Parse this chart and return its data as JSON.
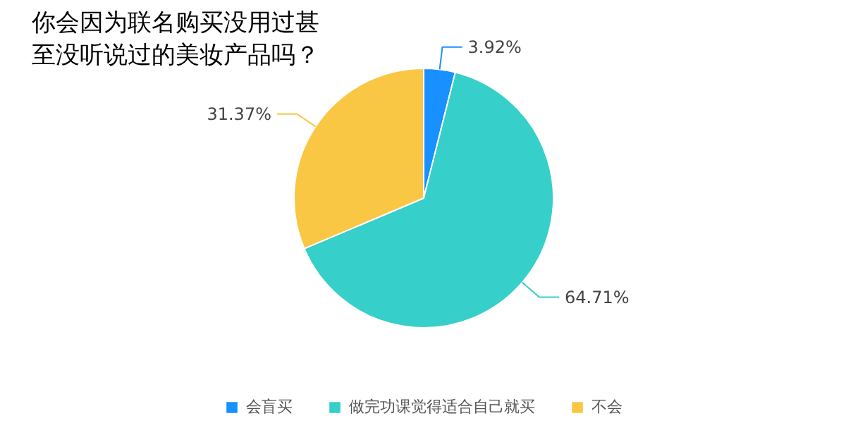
{
  "chart_data": {
    "type": "pie",
    "title": "你会因为联名购买没用过甚至没听说过的美妆产品吗？",
    "categories": [
      "会盲买",
      "做完功课觉得适合自己就买",
      "不会"
    ],
    "values": [
      3.92,
      64.71,
      31.37
    ],
    "colors": [
      "#1890ff",
      "#36cfc9",
      "#fac745"
    ],
    "value_labels": [
      "3.92%",
      "64.71%",
      "31.37%"
    ],
    "legend": "bottom"
  }
}
